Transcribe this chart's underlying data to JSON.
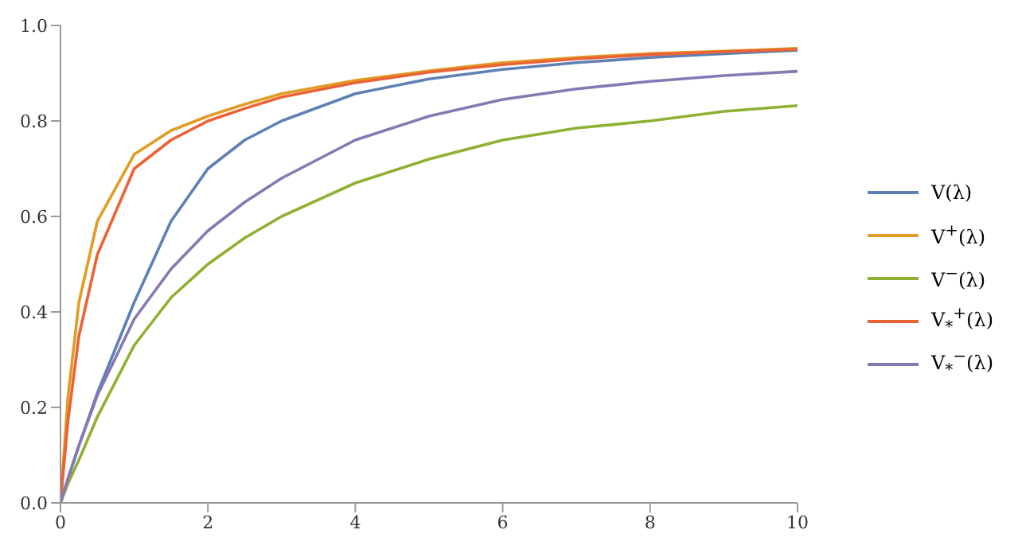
{
  "chart_data": {
    "type": "line",
    "x": [
      0,
      0.1,
      0.25,
      0.5,
      1,
      1.5,
      2,
      2.5,
      3,
      4,
      5,
      6,
      7,
      8,
      9,
      10
    ],
    "series": [
      {
        "name": "V(λ)",
        "color": "#5e81b5",
        "values": [
          0,
          0.05,
          0.12,
          0.23,
          0.42,
          0.59,
          0.7,
          0.76,
          0.8,
          0.857,
          0.888,
          0.908,
          0.922,
          0.933,
          0.941,
          0.948
        ]
      },
      {
        "name": "V$^{+}$(λ)",
        "color": "#e19c24",
        "values": [
          0,
          0.22,
          0.42,
          0.59,
          0.73,
          0.78,
          0.81,
          0.835,
          0.857,
          0.885,
          0.905,
          0.922,
          0.933,
          0.941,
          0.946,
          0.952
        ]
      },
      {
        "name": "V$^{−}$(λ)",
        "color": "#8fb032",
        "values": [
          0,
          0.04,
          0.09,
          0.18,
          0.33,
          0.43,
          0.5,
          0.555,
          0.6,
          0.67,
          0.72,
          0.76,
          0.785,
          0.8,
          0.82,
          0.832
        ]
      },
      {
        "name": "V$_{*}$$^{+}$(λ)",
        "color": "#eb6235",
        "values": [
          0,
          0.17,
          0.35,
          0.52,
          0.7,
          0.76,
          0.8,
          0.826,
          0.85,
          0.88,
          0.902,
          0.918,
          0.93,
          0.939,
          0.945,
          0.95
        ]
      },
      {
        "name": "V$_{*}$$^{−}$(λ)",
        "color": "#8778b3",
        "values": [
          0,
          0.05,
          0.12,
          0.225,
          0.385,
          0.49,
          0.57,
          0.63,
          0.68,
          0.76,
          0.81,
          0.845,
          0.867,
          0.883,
          0.895,
          0.904
        ]
      }
    ],
    "xlim": [
      0,
      10
    ],
    "xticks": [
      0,
      2,
      4,
      6,
      8,
      10
    ],
    "ylim": [
      0,
      1
    ],
    "yticks": [
      {
        "value": 0,
        "label": "0.0"
      },
      {
        "value": 0.2,
        "label": "0.2"
      },
      {
        "value": 0.4,
        "label": "0.4"
      },
      {
        "value": 0.6,
        "label": "0.6"
      },
      {
        "value": 0.8,
        "label": "0.8"
      },
      {
        "value": 1,
        "label": "1.0"
      }
    ],
    "grid": false,
    "legend": "right"
  }
}
